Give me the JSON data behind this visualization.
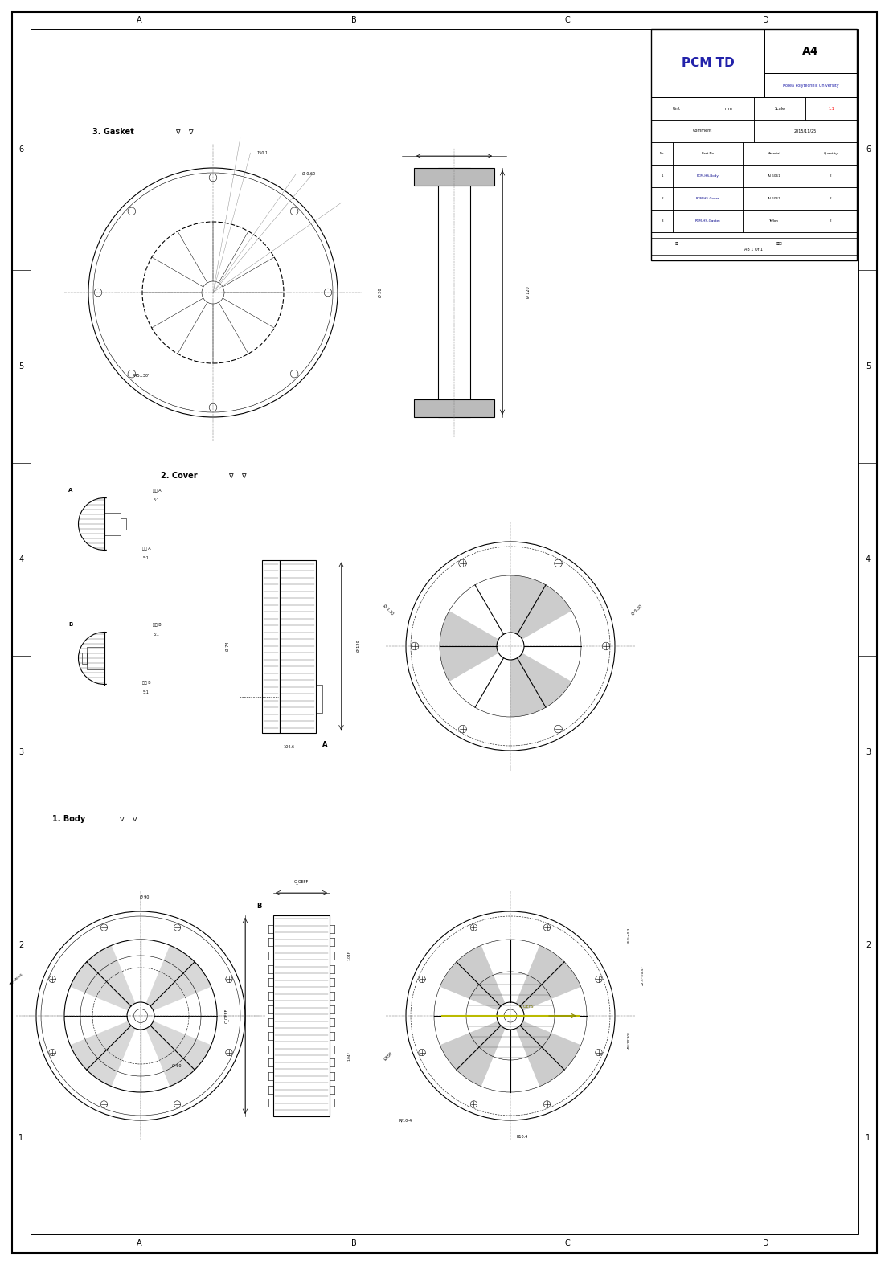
{
  "page_width": 11.06,
  "page_height": 15.74,
  "bg_color": "#ffffff",
  "border_color": "#000000",
  "line_color": "#000000",
  "dim_color": "#000000",
  "title_block": {
    "project": "PCM TD",
    "paper_size": "A4",
    "university": "Korea Polytechnic University",
    "unit": "mm",
    "scale": "1:1",
    "date": "2015/11/25",
    "sheet": "AB 1 Of 1",
    "parts": [
      {
        "no": "1",
        "part_no": "PCM-HS-Body",
        "material": "Al 6061",
        "quantity": "2"
      },
      {
        "no": "2",
        "part_no": "PCM-HS-Cover",
        "material": "Al 6061",
        "quantity": "2"
      },
      {
        "no": "3",
        "part_no": "PCM-HS-Gasket",
        "material": "Teflon",
        "quantity": "2"
      }
    ]
  },
  "labels": {
    "body": "1. Body",
    "cover": "2. Cover",
    "gasket": "3. Gasket"
  },
  "grid_labels_x": [
    "A",
    "B",
    "C",
    "D"
  ],
  "grid_labels_y": [
    "1",
    "2",
    "3",
    "4",
    "5",
    "6"
  ]
}
